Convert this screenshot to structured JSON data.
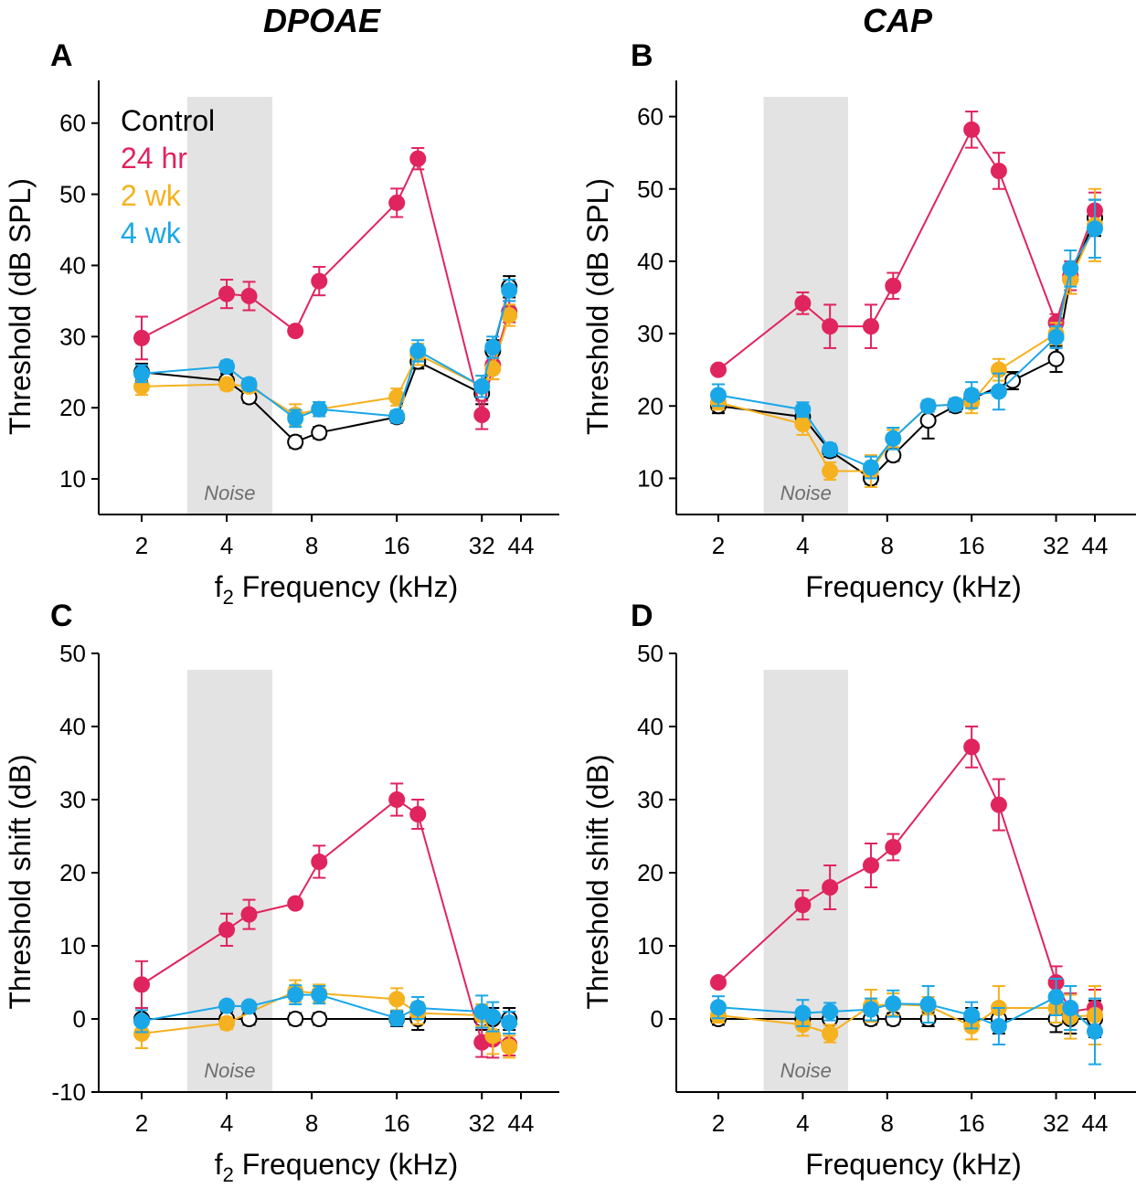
{
  "titles": {
    "left": "DPOAE",
    "right": "CAP"
  },
  "colors": {
    "control": "#000000",
    "hr24": "#e0245e",
    "wk2": "#f5b11f",
    "wk4": "#1aa7e8",
    "noise": "#e3e3e3"
  },
  "x_ticks": [
    {
      "f": 2,
      "label": "2"
    },
    {
      "f": 4,
      "label": "4"
    },
    {
      "f": 8,
      "label": "8"
    },
    {
      "f": 16,
      "label": "16"
    },
    {
      "f": 32,
      "label": "32"
    },
    {
      "f": 44,
      "label": "44"
    }
  ],
  "chart_data": [
    {
      "type": "line",
      "panel": "A",
      "noise_label": "Noise",
      "noise_band": [
        2.9,
        5.8
      ],
      "xlabel": "Frequency (kHz)",
      "xlabel_prefix": "f",
      "xlabel_sub": "2",
      "ylabel": "Threshold (dB SPL)",
      "ylim": [
        5,
        66
      ],
      "yticks": [
        10,
        20,
        30,
        40,
        50,
        60
      ],
      "legend": [
        "Control",
        "24 hr",
        "2 wk",
        "4 wk"
      ],
      "series": [
        {
          "name": "Control",
          "key": "control",
          "open": true,
          "x": [
            2,
            4,
            4.8,
            7,
            8.5,
            16,
            19,
            32,
            35,
            40
          ],
          "y": [
            25,
            23.8,
            21.5,
            15.2,
            16.5,
            18.7,
            26.5,
            22,
            28,
            37
          ],
          "err": [
            1.2,
            1,
            0.8,
            0.8,
            0.8,
            0.8,
            1,
            1.5,
            1.5,
            1.5
          ]
        },
        {
          "name": "24 hr",
          "key": "hr24",
          "open": false,
          "x": [
            2,
            4,
            4.8,
            7,
            8.5,
            16,
            19,
            32,
            35,
            40
          ],
          "y": [
            29.8,
            36,
            35.7,
            30.8,
            37.8,
            48.8,
            55,
            19,
            26,
            33.5
          ],
          "err": [
            3,
            2,
            2,
            0.5,
            2,
            2,
            1.5,
            2,
            2,
            1.5
          ]
        },
        {
          "name": "2 wk",
          "key": "wk2",
          "open": false,
          "x": [
            2,
            4,
            4.8,
            7,
            8.5,
            16,
            19,
            32,
            35,
            40
          ],
          "y": [
            23,
            23.3,
            23,
            19,
            19.8,
            21.5,
            27.5,
            23,
            25.5,
            33
          ],
          "err": [
            1.2,
            0.8,
            0.8,
            1.5,
            1,
            1.2,
            1.5,
            1.5,
            1.5,
            1.5
          ]
        },
        {
          "name": "4 wk",
          "key": "wk4",
          "open": false,
          "x": [
            2,
            4,
            4.8,
            7,
            8.5,
            16,
            19,
            32,
            35,
            40
          ],
          "y": [
            24.8,
            25.8,
            23.3,
            18.5,
            19.8,
            18.8,
            28,
            23,
            28.5,
            36.5
          ],
          "err": [
            1.2,
            0.8,
            0.8,
            1.2,
            1,
            0.8,
            1.5,
            1.5,
            1.5,
            1.5
          ]
        }
      ]
    },
    {
      "type": "line",
      "panel": "B",
      "noise_label": "Noise",
      "noise_band": [
        2.9,
        5.8
      ],
      "xlabel": "Frequency (kHz)",
      "xlabel_prefix": "",
      "xlabel_sub": "",
      "ylabel": "Threshold (dB SPL)",
      "ylim": [
        5,
        65
      ],
      "yticks": [
        10,
        20,
        30,
        40,
        50,
        60
      ],
      "series": [
        {
          "name": "Control",
          "key": "control",
          "open": true,
          "x": [
            2,
            4,
            5,
            7,
            8.4,
            11.2,
            14,
            16,
            22.4,
            32,
            36,
            44
          ],
          "y": [
            20,
            18.5,
            13.8,
            10,
            13.2,
            18,
            20,
            21,
            23.5,
            26.5,
            37.5,
            46
          ],
          "err": [
            1,
            1.2,
            0.8,
            0.8,
            0.8,
            2.5,
            0.8,
            1.2,
            1.2,
            1.8,
            2,
            2.5
          ]
        },
        {
          "name": "24 hr",
          "key": "hr24",
          "open": false,
          "x": [
            2,
            4,
            5,
            7,
            8.4,
            16,
            20,
            32,
            36,
            44
          ],
          "y": [
            25,
            34.2,
            31,
            31,
            36.6,
            58.2,
            52.5,
            31.5,
            38,
            47
          ],
          "err": [
            0.5,
            1.5,
            3,
            3,
            1.8,
            2.5,
            2.5,
            1.2,
            2,
            2.5
          ]
        },
        {
          "name": "2 wk",
          "key": "wk2",
          "open": false,
          "x": [
            2,
            4,
            5,
            7,
            8.4,
            11.2,
            14,
            16,
            20,
            32,
            36,
            44
          ],
          "y": [
            20.5,
            17.5,
            11,
            11,
            15.5,
            20,
            20.2,
            20.5,
            25,
            30,
            37.5,
            45
          ],
          "err": [
            1,
            1.5,
            1.2,
            2.2,
            1.2,
            0.8,
            0.8,
            1.5,
            1.5,
            1.5,
            2,
            5
          ]
        },
        {
          "name": "4 wk",
          "key": "wk4",
          "open": false,
          "x": [
            2,
            4,
            5,
            7,
            8.4,
            11.2,
            14,
            16,
            20,
            32,
            36,
            44
          ],
          "y": [
            21.5,
            19.5,
            14,
            11.5,
            15.5,
            20,
            20.2,
            21.5,
            22,
            29.5,
            39,
            44.5
          ],
          "err": [
            1.5,
            1,
            0.8,
            1.5,
            1.5,
            0.8,
            0.8,
            1.8,
            2.5,
            1.5,
            2.5,
            4
          ]
        }
      ]
    },
    {
      "type": "line",
      "panel": "C",
      "noise_label": "Noise",
      "noise_band": [
        2.9,
        5.8
      ],
      "xlabel": "Frequency (kHz)",
      "xlabel_prefix": "f",
      "xlabel_sub": "2",
      "ylabel": "Threshold shift (dB)",
      "ylim": [
        -10,
        50
      ],
      "yticks": [
        -10,
        0,
        10,
        20,
        30,
        40,
        50
      ],
      "series": [
        {
          "name": "Control",
          "key": "control",
          "open": true,
          "x": [
            2,
            4,
            4.8,
            7,
            8.5,
            16,
            19,
            32,
            35,
            40
          ],
          "y": [
            0,
            0,
            0,
            0,
            0,
            0,
            0,
            0,
            0,
            0
          ],
          "err": [
            1.5,
            1,
            0.8,
            0.8,
            0.8,
            1,
            1.5,
            1.5,
            1.5,
            1.5
          ]
        },
        {
          "name": "24 hr",
          "key": "hr24",
          "open": false,
          "x": [
            2,
            4,
            4.8,
            7,
            8.5,
            16,
            19,
            32,
            35,
            40
          ],
          "y": [
            4.7,
            12.2,
            14.3,
            15.8,
            21.5,
            30,
            28,
            -3.2,
            -2.8,
            -3.5
          ],
          "err": [
            3.2,
            2.2,
            2,
            0.5,
            2.2,
            2.2,
            2,
            2,
            2.5,
            1.5
          ]
        },
        {
          "name": "2 wk",
          "key": "wk2",
          "open": false,
          "x": [
            2,
            4,
            7,
            8.5,
            16,
            19,
            32,
            35,
            40
          ],
          "y": [
            -2,
            -0.6,
            3.8,
            3.5,
            2.7,
            0.8,
            0.5,
            -2.3,
            -3.8
          ],
          "err": [
            2,
            0.8,
            1.5,
            1.2,
            1.5,
            1.5,
            1.5,
            2.5,
            1.5
          ]
        },
        {
          "name": "4 wk",
          "key": "wk4",
          "open": false,
          "x": [
            2,
            4,
            4.8,
            7,
            8.5,
            16,
            19,
            32,
            35,
            40
          ],
          "y": [
            -0.3,
            1.8,
            1.7,
            3.3,
            3.3,
            0.1,
            1.5,
            1,
            0.3,
            -0.5
          ],
          "err": [
            1.5,
            0.5,
            0.5,
            1.3,
            1.2,
            1,
            1.5,
            2.2,
            2,
            1.5
          ]
        }
      ]
    },
    {
      "type": "line",
      "panel": "D",
      "noise_label": "Noise",
      "noise_band": [
        2.9,
        5.8
      ],
      "xlabel": "Frequency (kHz)",
      "xlabel_prefix": "",
      "xlabel_sub": "",
      "ylabel": "Threshold shift (dB)",
      "ylim": [
        -10,
        50
      ],
      "yticks": [
        0,
        10,
        20,
        30,
        40,
        50
      ],
      "series": [
        {
          "name": "Control",
          "key": "control",
          "open": true,
          "x": [
            2,
            4,
            5,
            7,
            8.4,
            11.2,
            16,
            20,
            32,
            36,
            44
          ],
          "y": [
            0,
            0,
            0,
            0,
            0,
            0,
            0,
            0,
            0,
            0,
            0
          ],
          "err": [
            0.8,
            1,
            0.8,
            0.8,
            0.8,
            1,
            1.5,
            2,
            1.8,
            2,
            2.5
          ]
        },
        {
          "name": "24 hr",
          "key": "hr24",
          "open": false,
          "x": [
            2,
            4,
            5,
            7,
            8.4,
            16,
            20,
            32,
            36,
            44
          ],
          "y": [
            5,
            15.6,
            18,
            21,
            23.5,
            37.2,
            29.3,
            5,
            1,
            1.5
          ],
          "err": [
            0.5,
            2,
            3,
            3,
            1.8,
            2.8,
            3.5,
            2.2,
            2.5,
            2.5
          ]
        },
        {
          "name": "2 wk",
          "key": "wk2",
          "open": false,
          "x": [
            2,
            4,
            5,
            7,
            8.4,
            11.2,
            16,
            20,
            32,
            36,
            44
          ],
          "y": [
            0.5,
            -0.8,
            -2,
            1.8,
            2,
            1.8,
            -1,
            1.5,
            1.5,
            0.3,
            0.5
          ],
          "err": [
            1,
            1.5,
            1.2,
            2.2,
            1.5,
            1.2,
            1.8,
            3,
            2,
            3,
            4
          ]
        },
        {
          "name": "4 wk",
          "key": "wk4",
          "open": false,
          "x": [
            2,
            4,
            5,
            7,
            8.4,
            11.2,
            16,
            20,
            32,
            36,
            44
          ],
          "y": [
            1.6,
            0.8,
            1,
            1.3,
            2.1,
            2,
            0.5,
            -1,
            3,
            1.5,
            -1.7
          ],
          "err": [
            1.5,
            1.8,
            1.2,
            1.5,
            1.8,
            2.5,
            1.8,
            2.5,
            2.5,
            3,
            4.5
          ]
        }
      ]
    }
  ]
}
